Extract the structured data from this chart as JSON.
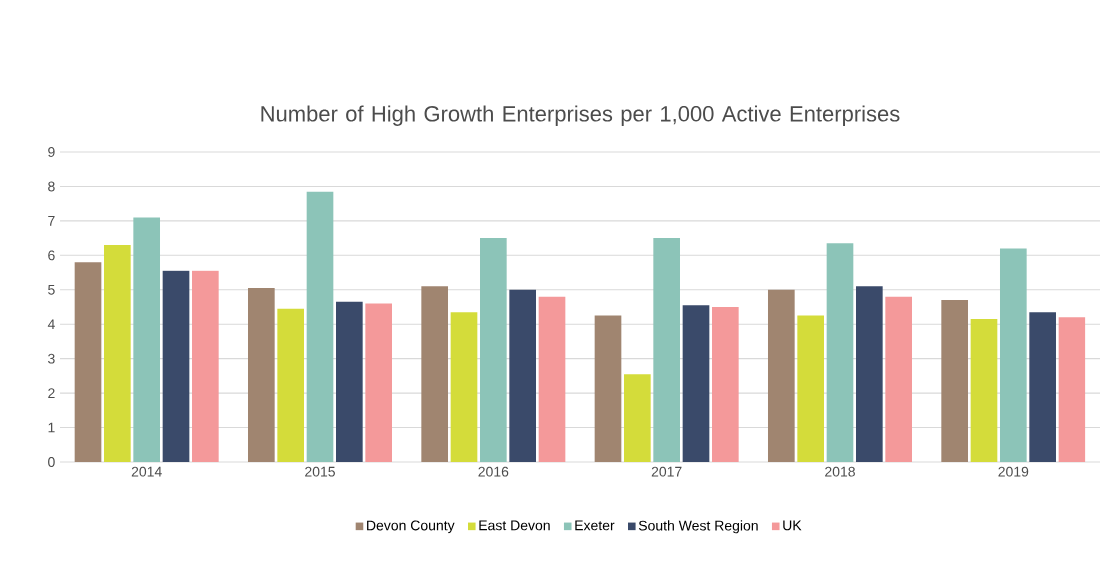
{
  "chart_data": {
    "type": "bar",
    "title": "Number of High Growth Enterprises per 1,000 Active Enterprises",
    "categories": [
      "2014",
      "2015",
      "2016",
      "2017",
      "2018",
      "2019"
    ],
    "series": [
      {
        "name": "Devon County",
        "color": "#a08570",
        "values": [
          5.8,
          5.05,
          5.1,
          4.25,
          5.0,
          4.7
        ]
      },
      {
        "name": "East Devon",
        "color": "#d4dc3a",
        "values": [
          6.3,
          4.45,
          4.35,
          2.55,
          4.25,
          4.15
        ]
      },
      {
        "name": "Exeter",
        "color": "#8cc4b8",
        "values": [
          7.1,
          7.85,
          6.5,
          6.5,
          6.35,
          6.2
        ]
      },
      {
        "name": "South West Region",
        "color": "#3a4a6a",
        "values": [
          5.55,
          4.65,
          5.0,
          4.55,
          5.1,
          4.35
        ]
      },
      {
        "name": "UK",
        "color": "#f4999a",
        "values": [
          5.55,
          4.6,
          4.8,
          4.5,
          4.8,
          4.2
        ]
      }
    ],
    "ylim": [
      0,
      9
    ],
    "yticks": [
      0,
      1,
      2,
      3,
      4,
      5,
      6,
      7,
      8,
      9
    ],
    "grid": "y",
    "legend": "bottom"
  }
}
